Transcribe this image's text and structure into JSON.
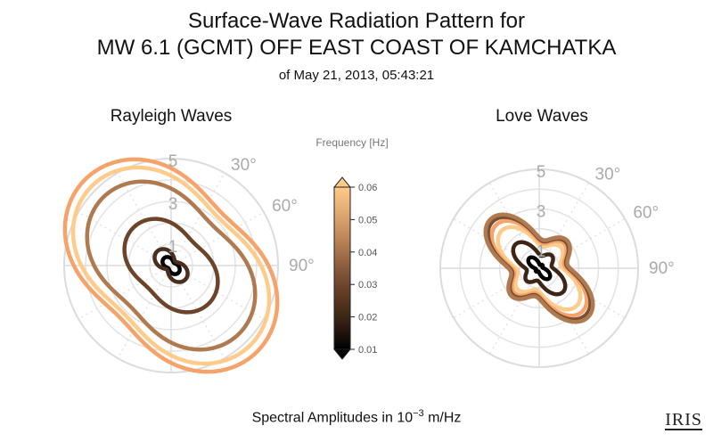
{
  "header": {
    "title_line1": "Surface-Wave Radiation Pattern for",
    "title_line2": "MW 6.1 (GCMT) OFF EAST COAST OF KAMCHATKA",
    "subtitle": "of May 21, 2013, 05:43:21"
  },
  "colorbar": {
    "label": "Frequency [Hz]",
    "ticks": [
      "0.01",
      "0.02",
      "0.03",
      "0.04",
      "0.05",
      "0.06"
    ],
    "range": [
      0.01,
      0.06
    ]
  },
  "footer": {
    "label_prefix": "Spectral Amplitudes in 10",
    "label_exp": "−3",
    "label_suffix": " m/Hz",
    "logo": "IRIS"
  },
  "chart_data": [
    {
      "type": "polar-line",
      "title": "Rayleigh Waves",
      "r_ticks": [
        "1",
        "3",
        "5"
      ],
      "r_max": 5,
      "angle_ticks": [
        "30°",
        "60°",
        "90°"
      ],
      "angle_offset_deg": 0,
      "series": [
        {
          "freq": 0.01,
          "base": 0.33,
          "lobe": 0.45,
          "quad": 0.0,
          "rot_deg": 135,
          "color": "#000000"
        },
        {
          "freq": 0.02,
          "base": 0.6,
          "lobe": 0.55,
          "quad": 0.0,
          "rot_deg": 135,
          "color": "#4a2e1e"
        },
        {
          "freq": 0.03,
          "base": 2.0,
          "lobe": 0.25,
          "quad": 0.0,
          "rot_deg": 135,
          "color": "#6b4429"
        },
        {
          "freq": 0.04,
          "base": 3.6,
          "lobe": 0.25,
          "quad": 0.0,
          "rot_deg": 135,
          "color": "#b07a51"
        },
        {
          "freq": 0.05,
          "base": 4.2,
          "lobe": 0.25,
          "quad": 0.0,
          "rot_deg": 135,
          "color": "#ffcb8a"
        },
        {
          "freq": 0.06,
          "base": 4.55,
          "lobe": 0.25,
          "quad": 0.0,
          "rot_deg": 135,
          "color": "#f6a36b"
        }
      ]
    },
    {
      "type": "polar-line",
      "title": "Love Waves",
      "r_ticks": [
        "1",
        "3",
        "5"
      ],
      "r_max": 5,
      "angle_ticks": [
        "30°",
        "60°",
        "90°"
      ],
      "angle_offset_deg": 0,
      "series": [
        {
          "freq": 0.01,
          "base": 0.35,
          "lobe": 0.7,
          "quad": 0.7,
          "rot_deg": 135,
          "color": "#000000"
        },
        {
          "freq": 0.02,
          "base": 1.0,
          "lobe": 0.4,
          "quad": 0.6,
          "rot_deg": 135,
          "color": "#3d2616"
        },
        {
          "freq": 0.03,
          "base": 1.65,
          "lobe": 0.35,
          "quad": 0.55,
          "rot_deg": 135,
          "color": "#ffcb8a"
        },
        {
          "freq": 0.04,
          "base": 1.9,
          "lobe": 0.35,
          "quad": 0.55,
          "rot_deg": 135,
          "color": "#f6a36b"
        },
        {
          "freq": 0.05,
          "base": 2.05,
          "lobe": 0.35,
          "quad": 0.55,
          "rot_deg": 135,
          "color": "#7a4f33"
        },
        {
          "freq": 0.06,
          "base": 2.15,
          "lobe": 0.35,
          "quad": 0.55,
          "rot_deg": 135,
          "color": "#b07a51"
        }
      ]
    }
  ]
}
